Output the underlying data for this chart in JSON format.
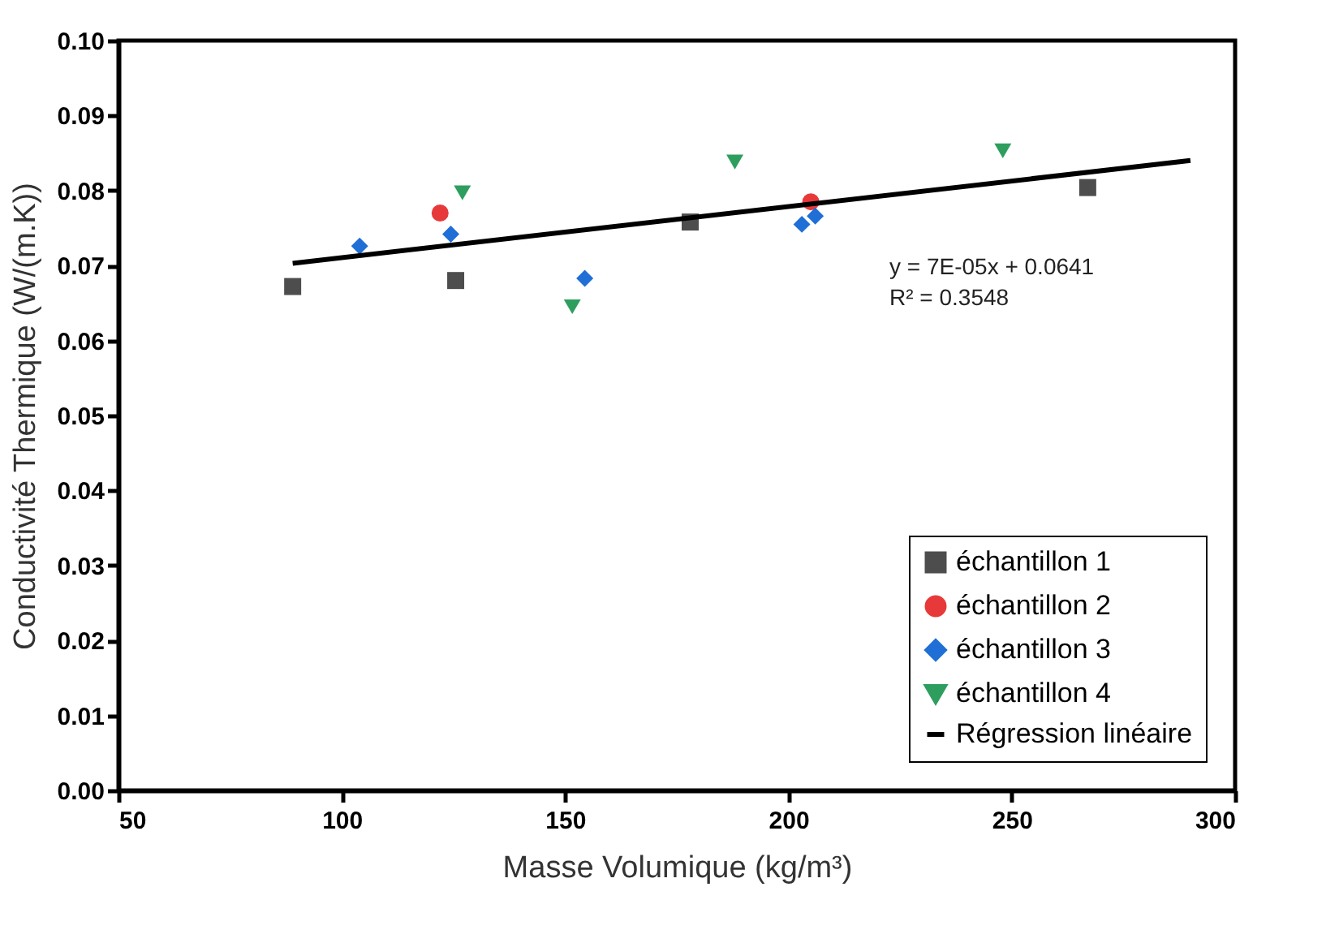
{
  "chart_data": {
    "type": "scatter",
    "xlabel": "Masse Volumique (kg/m³)",
    "ylabel": "Conductivité Thermique (W/(m.K))",
    "xlim": [
      50,
      300
    ],
    "xticks": [
      50,
      100,
      150,
      200,
      250,
      300
    ],
    "ylim": [
      0,
      0.1
    ],
    "yticks": [
      {
        "value": 0,
        "label": "0.00"
      },
      0.01,
      0.02,
      0.03,
      0.04,
      0.05,
      0.06,
      0.07,
      0.08,
      0.09,
      {
        "value": 0.1,
        "label": "0.10"
      }
    ],
    "grid": false,
    "legend": "bottom right",
    "annotations": [
      "y = 7E-05x + 0.0641",
      "R² = 0.3548"
    ],
    "series": [
      {
        "name": "échantillon 1",
        "color": "#4d4d4d",
        "marker": "square",
        "x": [
          89,
          125.5,
          178,
          267
        ],
        "values": [
          0.0672,
          0.068,
          0.0758,
          0.0804
        ]
      },
      {
        "name": "échantillon 2",
        "color": "#e8393a",
        "marker": "circle",
        "x": [
          122,
          205
        ],
        "values": [
          0.077,
          0.0785
        ]
      },
      {
        "name": "échantillon 3",
        "color": "#1f6fd6",
        "marker": "diamond",
        "x": [
          104,
          124.4,
          154.4,
          203,
          206
        ],
        "values": [
          0.0726,
          0.0742,
          0.0683,
          0.0755,
          0.0766
        ]
      },
      {
        "name": "échantillon 4",
        "color": "#2e9e5e",
        "marker": "triangle",
        "x": [
          127,
          151.6,
          188,
          248
        ],
        "values": [
          0.0797,
          0.0645,
          0.0838,
          0.0853
        ]
      },
      {
        "name": "Régression linéaire",
        "type": "line",
        "color": "#000000",
        "marker": "none",
        "line_style": "solid",
        "x": [
          89,
          290
        ],
        "values": [
          0.0703,
          0.084
        ]
      }
    ]
  }
}
